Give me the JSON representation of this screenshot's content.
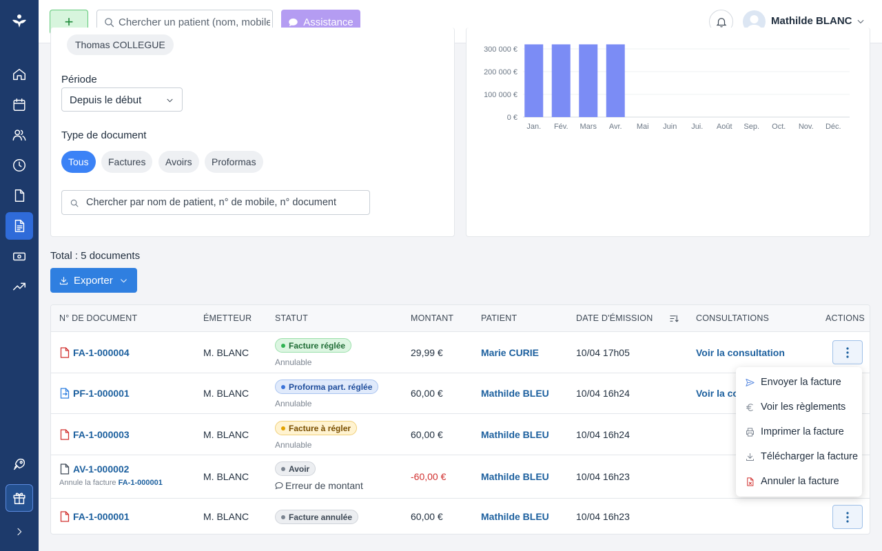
{
  "topbar": {
    "add_label": "+",
    "search_placeholder": "Chercher un patient (nom, mobile...)",
    "assistance_label": "Assistance",
    "user_name": "Mathilde BLANC"
  },
  "filters": {
    "selected_practitioner": "Thomas COLLEGUE",
    "period_label": "Période",
    "period_value": "Depuis le début",
    "doc_type_label": "Type de document",
    "doc_types": [
      "Tous",
      "Factures",
      "Avoirs",
      "Proformas"
    ],
    "doc_type_selected": "Tous",
    "search_placeholder": "Chercher par nom de patient, n° de mobile, n° document"
  },
  "chart_data": {
    "type": "bar",
    "categories": [
      "Jan.",
      "Fév.",
      "Mars",
      "Avr.",
      "Mai",
      "Juin",
      "Jui.",
      "Août",
      "Sep.",
      "Oct.",
      "Nov.",
      "Déc."
    ],
    "values": [
      320000,
      320000,
      320000,
      320000,
      0,
      0,
      0,
      0,
      0,
      0,
      0,
      0
    ],
    "yticks": [
      0,
      100000,
      200000,
      300000
    ],
    "ytick_labels": [
      "0 €",
      "100 000 €",
      "200 000 €",
      "300 000 €"
    ],
    "ylim": [
      0,
      320000
    ],
    "bar_color": "#7b8cf5",
    "grid": true
  },
  "summary": {
    "total": "Total : 5 documents",
    "export_label": "Exporter"
  },
  "table": {
    "headers": {
      "doc": "N° DE DOCUMENT",
      "issuer": "ÉMETTEUR",
      "status": "STATUT",
      "amount": "MONTANT",
      "patient": "PATIENT",
      "date": "DATE D'ÉMISSION",
      "consult": "CONSULTATIONS",
      "actions": "ACTIONS"
    },
    "rows": [
      {
        "doc": "FA-1-000004",
        "issuer": "M. BLANC",
        "status": "Facture réglée",
        "status_sub": "Annulable",
        "amount": "29,99 €",
        "patient": "Marie CURIE",
        "date": "10/04 17h05",
        "consult": "Voir la consultation"
      },
      {
        "doc": "PF-1-000001",
        "issuer": "M. BLANC",
        "status": "Proforma part. réglée",
        "status_sub": "Annulable",
        "amount": "60,00 €",
        "patient": "Mathilde BLEU",
        "date": "10/04 16h24",
        "consult": "Voir la co"
      },
      {
        "doc": "FA-1-000003",
        "issuer": "M. BLANC",
        "status": "Facture à régler",
        "status_sub": "Annulable",
        "amount": "60,00 €",
        "patient": "Mathilde BLEU",
        "date": "10/04 16h24",
        "consult": ""
      },
      {
        "doc": "AV-1-000002",
        "doc_sub_prefix": "Annule la facture",
        "doc_sub_link": "FA-1-000001",
        "issuer": "M. BLANC",
        "status": "Avoir",
        "status_sub": "Erreur de montant",
        "amount": "-60,00 €",
        "patient": "Mathilde BLEU",
        "date": "10/04 16h23",
        "consult": ""
      },
      {
        "doc": "FA-1-000001",
        "issuer": "M. BLANC",
        "status": "Facture annulée",
        "status_sub": "",
        "amount": "60,00 €",
        "patient": "Mathilde BLEU",
        "date": "10/04 16h23",
        "consult": ""
      }
    ]
  },
  "menu": {
    "items": [
      "Envoyer la facture",
      "Voir les règlements",
      "Imprimer la facture",
      "Télécharger la facture",
      "Annuler la facture"
    ]
  }
}
